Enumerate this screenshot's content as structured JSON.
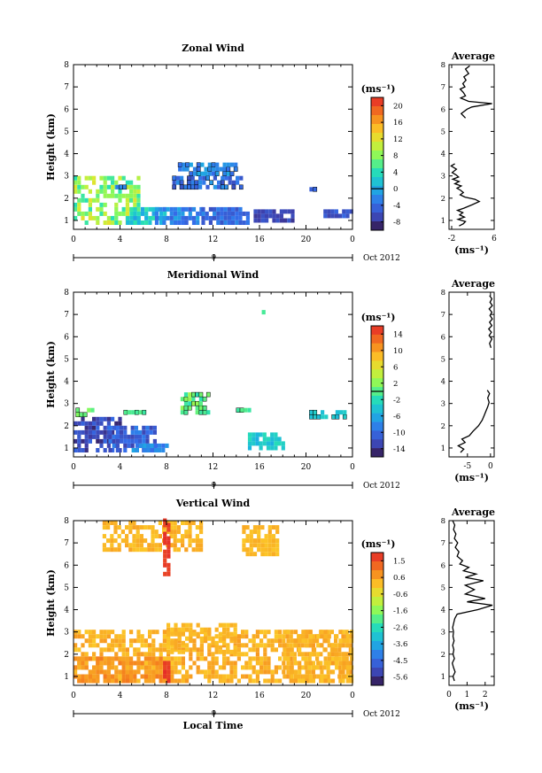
{
  "figure": {
    "xlabel": "Local Time",
    "date_label": "Oct 2012",
    "day_label": "9",
    "avg_title": "Average",
    "unit_label": "(ms⁻¹)",
    "ylabel": "Height (km)"
  },
  "chart_data": [
    {
      "type": "heatmap",
      "title": "Zonal Wind",
      "xlabel": "",
      "ylabel": "Height (km)",
      "xlim": [
        0,
        24
      ],
      "ylim": [
        0.6,
        8
      ],
      "xticks": [
        "0",
        "4",
        "8",
        "12",
        "16",
        "20",
        "0"
      ],
      "yticks": [
        "1",
        "2",
        "3",
        "4",
        "5",
        "6",
        "7",
        "8"
      ],
      "colorbar": {
        "unit": "(ms⁻¹)",
        "ticks": [
          "20",
          "16",
          "12",
          "8",
          "4",
          "0",
          "-4",
          "-8"
        ],
        "min": -10,
        "max": 22,
        "contour": 0
      },
      "clusters": [
        {
          "x": [
            0,
            5.5
          ],
          "y": [
            0.8,
            2.9
          ],
          "v": [
            4,
            12
          ]
        },
        {
          "x": [
            4.5,
            8
          ],
          "y": [
            0.8,
            1.5
          ],
          "v": [
            -1,
            5
          ]
        },
        {
          "x": [
            7,
            11
          ],
          "y": [
            0.8,
            1.5
          ],
          "v": [
            -5,
            0
          ]
        },
        {
          "x": [
            11,
            15
          ],
          "y": [
            0.8,
            1.5
          ],
          "v": [
            -6,
            -2
          ]
        },
        {
          "x": [
            15.5,
            19
          ],
          "y": [
            0.9,
            1.4
          ],
          "v": [
            -8,
            -5
          ]
        },
        {
          "x": [
            21.5,
            24
          ],
          "y": [
            1.1,
            1.5
          ],
          "v": [
            -7,
            -4
          ]
        },
        {
          "x": [
            8.5,
            14.5
          ],
          "y": [
            2.4,
            2.9
          ],
          "v": [
            -6,
            -1
          ]
        },
        {
          "x": [
            9,
            14
          ],
          "y": [
            3.0,
            3.5
          ],
          "v": [
            -4,
            0
          ]
        },
        {
          "x": [
            3.6,
            4.4
          ],
          "y": [
            2.4,
            2.6
          ],
          "v": [
            -3,
            -2
          ]
        },
        {
          "x": [
            20.3,
            20.9
          ],
          "y": [
            2.3,
            2.5
          ],
          "v": [
            -5,
            -4
          ]
        }
      ],
      "profile": {
        "xlim": [
          -2.5,
          6
        ],
        "xticks": [
          "-2",
          "6"
        ],
        "points": [
          [
            -0.6,
            0.75
          ],
          [
            0.2,
            0.85
          ],
          [
            0.6,
            0.95
          ],
          [
            -0.8,
            1.05
          ],
          [
            0.4,
            1.15
          ],
          [
            -0.5,
            1.25
          ],
          [
            0.1,
            1.35
          ],
          [
            -0.9,
            1.45
          ],
          [
            0.3,
            1.55
          ],
          [
            1.8,
            1.7
          ],
          [
            3.2,
            1.85
          ],
          [
            2.4,
            1.95
          ],
          [
            0.5,
            2.05
          ],
          [
            -0.4,
            2.15
          ],
          [
            0.2,
            2.25
          ],
          [
            -0.3,
            2.35
          ],
          [
            -1.0,
            2.45
          ],
          [
            -0.2,
            2.55
          ],
          [
            -1.4,
            2.65
          ],
          [
            -0.6,
            2.75
          ],
          [
            -1.8,
            2.85
          ],
          [
            -0.7,
            2.95
          ],
          [
            -1.2,
            3.05
          ],
          [
            -1.9,
            3.15
          ],
          [
            -1.1,
            3.3
          ],
          [
            -2.1,
            3.45
          ],
          [
            -1.4,
            3.55
          ],
          [
            0.6,
            5.6
          ],
          [
            -0.2,
            5.8
          ],
          [
            0.9,
            6.0
          ],
          [
            1.8,
            6.1
          ],
          [
            5.6,
            6.25
          ],
          [
            1.2,
            6.35
          ],
          [
            -0.3,
            6.5
          ],
          [
            0.6,
            6.6
          ],
          [
            0.2,
            6.75
          ],
          [
            -0.4,
            6.9
          ],
          [
            0.5,
            7.0
          ],
          [
            0.1,
            7.15
          ],
          [
            0.7,
            7.3
          ],
          [
            0.3,
            7.45
          ],
          [
            1.2,
            7.6
          ],
          [
            0.6,
            7.8
          ],
          [
            1.4,
            7.95
          ]
        ]
      }
    },
    {
      "type": "heatmap",
      "title": "Meridional Wind",
      "xlabel": "",
      "ylabel": "Height (km)",
      "xlim": [
        0,
        24
      ],
      "ylim": [
        0.6,
        8
      ],
      "xticks": [
        "0",
        "4",
        "8",
        "12",
        "16",
        "20",
        "0"
      ],
      "yticks": [
        "1",
        "2",
        "3",
        "4",
        "5",
        "6",
        "7",
        "8"
      ],
      "colorbar": {
        "unit": "(ms⁻¹)",
        "ticks": [
          "14",
          "10",
          "6",
          "2",
          "-2",
          "-6",
          "-10",
          "-14"
        ],
        "min": -16,
        "max": 16,
        "contour": 0
      },
      "clusters": [
        {
          "x": [
            0,
            4
          ],
          "y": [
            0.8,
            2.4
          ],
          "v": [
            -15,
            -10
          ]
        },
        {
          "x": [
            3,
            7
          ],
          "y": [
            0.8,
            1.8
          ],
          "v": [
            -13,
            -8
          ]
        },
        {
          "x": [
            5,
            8
          ],
          "y": [
            0.8,
            1.2
          ],
          "v": [
            -10,
            -6
          ]
        },
        {
          "x": [
            15,
            18
          ],
          "y": [
            0.9,
            1.6
          ],
          "v": [
            -6,
            -2
          ]
        },
        {
          "x": [
            0.2,
            1.8
          ],
          "y": [
            2.4,
            2.8
          ],
          "v": [
            -1,
            2
          ]
        },
        {
          "x": [
            4,
            6
          ],
          "y": [
            2.5,
            2.7
          ],
          "v": [
            -1,
            1
          ]
        },
        {
          "x": [
            9.2,
            11.5
          ],
          "y": [
            2.5,
            3.4
          ],
          "v": [
            -2,
            3
          ]
        },
        {
          "x": [
            14,
            15
          ],
          "y": [
            2.6,
            2.8
          ],
          "v": [
            -1,
            0
          ]
        },
        {
          "x": [
            20.3,
            23.5
          ],
          "y": [
            2.3,
            2.7
          ],
          "v": [
            -5,
            -3
          ]
        },
        {
          "x": [
            16.2,
            16.5
          ],
          "y": [
            7.0,
            7.1
          ],
          "v": [
            -1,
            0
          ]
        }
      ],
      "profile": {
        "xlim": [
          -9,
          0.8
        ],
        "xticks": [
          "-5",
          "0"
        ],
        "points": [
          [
            -6.5,
            0.8
          ],
          [
            -5.8,
            0.95
          ],
          [
            -7.0,
            1.1
          ],
          [
            -5.5,
            1.25
          ],
          [
            -6.2,
            1.4
          ],
          [
            -4.6,
            1.55
          ],
          [
            -3.8,
            1.75
          ],
          [
            -2.6,
            2.0
          ],
          [
            -1.8,
            2.25
          ],
          [
            -1.4,
            2.45
          ],
          [
            -1.0,
            2.65
          ],
          [
            -0.6,
            2.85
          ],
          [
            -0.3,
            3.05
          ],
          [
            -0.6,
            3.25
          ],
          [
            -0.2,
            3.45
          ],
          [
            -0.7,
            3.6
          ],
          [
            0.1,
            5.5
          ],
          [
            -0.2,
            5.7
          ],
          [
            0.3,
            5.9
          ],
          [
            -0.3,
            6.05
          ],
          [
            0.2,
            6.2
          ],
          [
            -0.4,
            6.35
          ],
          [
            0.3,
            6.5
          ],
          [
            -0.2,
            6.65
          ],
          [
            0.4,
            6.8
          ],
          [
            -0.1,
            6.95
          ],
          [
            0.3,
            7.1
          ],
          [
            -0.3,
            7.25
          ],
          [
            0.4,
            7.4
          ],
          [
            -0.1,
            7.55
          ],
          [
            0.3,
            7.7
          ],
          [
            -0.2,
            7.85
          ]
        ]
      }
    },
    {
      "type": "heatmap",
      "title": "Vertical Wind",
      "xlabel": "Local Time",
      "ylabel": "Height (km)",
      "xlim": [
        0,
        24
      ],
      "ylim": [
        0.6,
        8
      ],
      "xticks": [
        "0",
        "4",
        "8",
        "12",
        "16",
        "20",
        "0"
      ],
      "yticks": [
        "1",
        "2",
        "3",
        "4",
        "5",
        "6",
        "7",
        "8"
      ],
      "colorbar": {
        "unit": "(ms⁻¹)",
        "ticks": [
          "1.5",
          "0.6",
          "-0.6",
          "-1.6",
          "-2.6",
          "-3.6",
          "-4.5",
          "-5.6"
        ],
        "min": -6,
        "max": 2
      },
      "clusters": [
        {
          "x": [
            0,
            24
          ],
          "y": [
            0.7,
            3.0
          ],
          "v": [
            0.0,
            0.6
          ]
        },
        {
          "x": [
            0,
            8
          ],
          "y": [
            0.7,
            1.8
          ],
          "v": [
            0.4,
            1.0
          ]
        },
        {
          "x": [
            8,
            14
          ],
          "y": [
            2.0,
            3.3
          ],
          "v": [
            0.0,
            0.4
          ]
        },
        {
          "x": [
            18,
            24
          ],
          "y": [
            0.7,
            3.0
          ],
          "v": [
            0.0,
            0.5
          ]
        },
        {
          "x": [
            2.5,
            11
          ],
          "y": [
            6.6,
            8.0
          ],
          "v": [
            0.0,
            0.5
          ]
        },
        {
          "x": [
            14.5,
            17.5
          ],
          "y": [
            6.4,
            7.7
          ],
          "v": [
            0.0,
            0.4
          ]
        },
        {
          "x": [
            7.7,
            8.1
          ],
          "y": [
            0.7,
            1.5
          ],
          "v": [
            1.6,
            2.0
          ]
        },
        {
          "x": [
            7.7,
            8.1
          ],
          "y": [
            5.5,
            8.0
          ],
          "v": [
            1.6,
            2.0
          ]
        }
      ],
      "profile": {
        "xlim": [
          0,
          2.5
        ],
        "xticks": [
          "0",
          "1",
          "2"
        ],
        "points": [
          [
            0.3,
            0.8
          ],
          [
            0.22,
            1.0
          ],
          [
            0.34,
            1.2
          ],
          [
            0.25,
            1.4
          ],
          [
            0.18,
            1.6
          ],
          [
            0.3,
            1.8
          ],
          [
            0.22,
            2.0
          ],
          [
            0.27,
            2.2
          ],
          [
            0.2,
            2.4
          ],
          [
            0.28,
            2.6
          ],
          [
            0.22,
            2.8
          ],
          [
            0.25,
            3.0
          ],
          [
            0.2,
            3.2
          ],
          [
            0.26,
            3.4
          ],
          [
            0.32,
            3.6
          ],
          [
            0.45,
            3.8
          ],
          [
            1.6,
            4.0
          ],
          [
            2.4,
            4.2
          ],
          [
            1.0,
            4.35
          ],
          [
            2.0,
            4.5
          ],
          [
            0.9,
            4.7
          ],
          [
            1.4,
            4.9
          ],
          [
            0.9,
            5.1
          ],
          [
            1.9,
            5.3
          ],
          [
            0.9,
            5.45
          ],
          [
            1.5,
            5.6
          ],
          [
            0.8,
            5.75
          ],
          [
            1.1,
            5.9
          ],
          [
            0.6,
            6.05
          ],
          [
            0.75,
            6.2
          ],
          [
            0.45,
            6.4
          ],
          [
            0.55,
            6.6
          ],
          [
            0.35,
            6.8
          ],
          [
            0.48,
            7.0
          ],
          [
            0.3,
            7.2
          ],
          [
            0.38,
            7.4
          ],
          [
            0.25,
            7.6
          ],
          [
            0.32,
            7.8
          ],
          [
            0.2,
            8.0
          ]
        ]
      }
    }
  ]
}
